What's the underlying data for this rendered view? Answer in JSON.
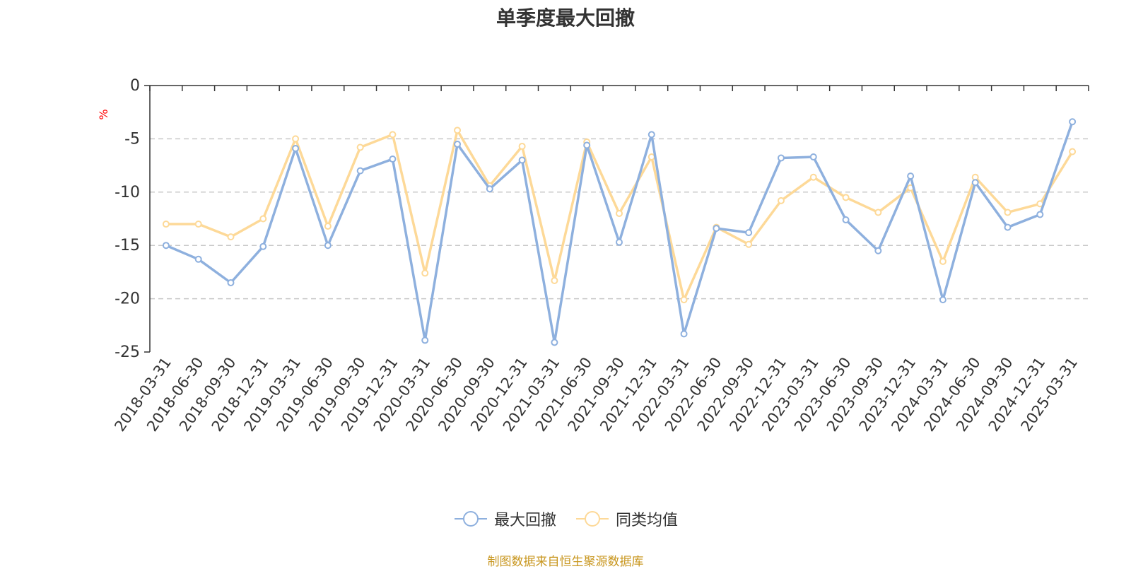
{
  "chart_data": {
    "type": "line",
    "title": "单季度最大回撤",
    "ylabel": "%",
    "xlabel": "",
    "ylim": [
      -25,
      0
    ],
    "yticks": [
      0,
      -5,
      -10,
      -15,
      -20,
      -25
    ],
    "grid": true,
    "legend_position": "bottom",
    "categories": [
      "2018-03-31",
      "2018-06-30",
      "2018-09-30",
      "2018-12-31",
      "2019-03-31",
      "2019-06-30",
      "2019-09-30",
      "2019-12-31",
      "2020-03-31",
      "2020-06-30",
      "2020-09-30",
      "2020-12-31",
      "2021-03-31",
      "2021-06-30",
      "2021-09-30",
      "2021-12-31",
      "2022-03-31",
      "2022-06-30",
      "2022-09-30",
      "2022-12-31",
      "2023-03-31",
      "2023-06-30",
      "2023-09-30",
      "2023-12-31",
      "2024-03-31",
      "2024-06-30",
      "2024-09-30",
      "2024-12-31",
      "2025-03-31"
    ],
    "series": [
      {
        "name": "最大回撤",
        "color": "#8eb0de",
        "values": [
          -15.0,
          -16.3,
          -18.5,
          -15.1,
          -5.9,
          -15.0,
          -8.0,
          -6.9,
          -23.9,
          -5.5,
          -9.7,
          -7.0,
          -24.1,
          -5.6,
          -14.7,
          -4.6,
          -23.3,
          -13.4,
          -13.8,
          -6.8,
          -6.7,
          -12.6,
          -15.5,
          -8.5,
          -20.1,
          -9.1,
          -13.3,
          -12.1,
          -3.4
        ]
      },
      {
        "name": "同类均值",
        "color": "#fdd998",
        "values": [
          -13.0,
          -13.0,
          -14.2,
          -12.5,
          -5.0,
          -13.2,
          -5.8,
          -4.6,
          -17.6,
          -4.2,
          -9.4,
          -5.7,
          -18.3,
          -5.3,
          -12.0,
          -6.7,
          -20.1,
          -13.3,
          -14.9,
          -10.8,
          -8.6,
          -10.5,
          -11.9,
          -9.6,
          -16.5,
          -8.6,
          -11.9,
          -11.1,
          -6.2
        ]
      }
    ]
  },
  "source_note": "制图数据来自恒生聚源数据库"
}
